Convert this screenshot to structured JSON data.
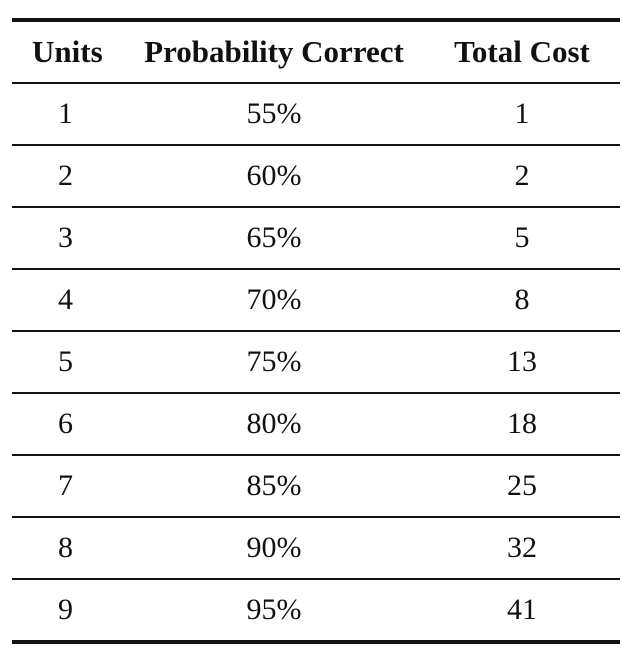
{
  "table": {
    "headers": [
      "Units",
      "Probability Correct",
      "Total Cost"
    ],
    "rows": [
      [
        "1",
        "55%",
        "1"
      ],
      [
        "2",
        "60%",
        "2"
      ],
      [
        "3",
        "65%",
        "5"
      ],
      [
        "4",
        "70%",
        "8"
      ],
      [
        "5",
        "75%",
        "13"
      ],
      [
        "6",
        "80%",
        "18"
      ],
      [
        "7",
        "85%",
        "25"
      ],
      [
        "8",
        "90%",
        "32"
      ],
      [
        "9",
        "95%",
        "41"
      ]
    ]
  }
}
